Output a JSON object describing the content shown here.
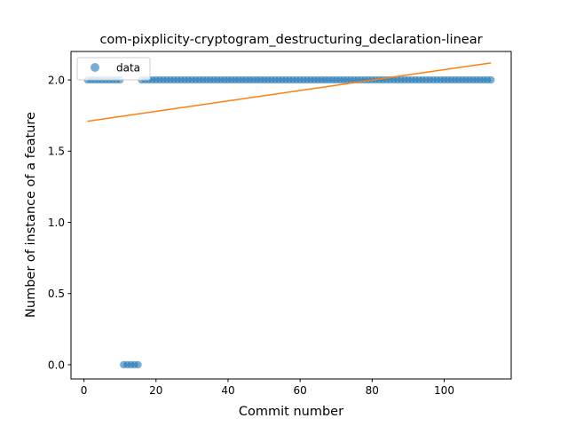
{
  "chart_data": {
    "type": "scatter",
    "title": "com-pixplicity-cryptogram_destructuring_declaration-linear",
    "xlabel": "Commit number",
    "ylabel": "Number of instance of a feature",
    "xlim": [
      -3.6,
      118.6
    ],
    "ylim": [
      -0.1,
      2.2
    ],
    "xticks": [
      0,
      20,
      40,
      60,
      80,
      100
    ],
    "yticks": [
      0.0,
      0.5,
      1.0,
      1.5,
      2.0
    ],
    "xtick_labels": [
      "0",
      "20",
      "40",
      "60",
      "80",
      "100"
    ],
    "ytick_labels": [
      "0.0",
      "0.5",
      "1.0",
      "1.5",
      "2.0"
    ],
    "legend": {
      "position": "upper-left",
      "entries": [
        "data"
      ]
    },
    "grid": false,
    "series": [
      {
        "name": "data",
        "kind": "scatter",
        "color": "#1f77b4",
        "x": [
          1,
          2,
          3,
          4,
          5,
          6,
          7,
          8,
          9,
          10,
          11,
          12,
          13,
          14,
          15,
          16,
          17,
          18,
          19,
          20,
          21,
          22,
          23,
          24,
          25,
          26,
          27,
          28,
          29,
          30,
          31,
          32,
          33,
          34,
          35,
          36,
          37,
          38,
          39,
          40,
          41,
          42,
          43,
          44,
          45,
          46,
          47,
          48,
          49,
          50,
          51,
          52,
          53,
          54,
          55,
          56,
          57,
          58,
          59,
          60,
          61,
          62,
          63,
          64,
          65,
          66,
          67,
          68,
          69,
          70,
          71,
          72,
          73,
          74,
          75,
          76,
          77,
          78,
          79,
          80,
          81,
          82,
          83,
          84,
          85,
          86,
          87,
          88,
          89,
          90,
          91,
          92,
          93,
          94,
          95,
          96,
          97,
          98,
          99,
          100,
          101,
          102,
          103,
          104,
          105,
          106,
          107,
          108,
          109,
          110,
          111,
          112,
          113
        ],
        "y": [
          2,
          2,
          2,
          2,
          2,
          2,
          2,
          2,
          2,
          2,
          0,
          0,
          0,
          0,
          0,
          2,
          2,
          2,
          2,
          2,
          2,
          2,
          2,
          2,
          2,
          2,
          2,
          2,
          2,
          2,
          2,
          2,
          2,
          2,
          2,
          2,
          2,
          2,
          2,
          2,
          2,
          2,
          2,
          2,
          2,
          2,
          2,
          2,
          2,
          2,
          2,
          2,
          2,
          2,
          2,
          2,
          2,
          2,
          2,
          2,
          2,
          2,
          2,
          2,
          2,
          2,
          2,
          2,
          2,
          2,
          2,
          2,
          2,
          2,
          2,
          2,
          2,
          2,
          2,
          2,
          2,
          2,
          2,
          2,
          2,
          2,
          2,
          2,
          2,
          2,
          2,
          2,
          2,
          2,
          2,
          2,
          2,
          2,
          2,
          2,
          2,
          2,
          2,
          2,
          2,
          2,
          2,
          2,
          2,
          2,
          2,
          2,
          2
        ]
      },
      {
        "kind": "line",
        "color": "#ff7f0e",
        "x": [
          1,
          113
        ],
        "y": [
          1.71,
          2.12
        ]
      }
    ]
  }
}
